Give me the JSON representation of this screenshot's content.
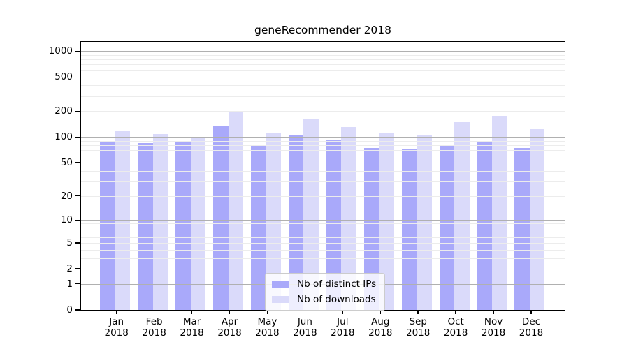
{
  "title": "geneRecommender 2018",
  "chart_data": {
    "type": "bar",
    "title": "geneRecommender 2018",
    "categories": [
      "Jan",
      "Feb",
      "Mar",
      "Apr",
      "May",
      "Jun",
      "Jul",
      "Aug",
      "Sep",
      "Oct",
      "Nov",
      "Dec"
    ],
    "year": "2018",
    "series": [
      {
        "name": "Nb of distinct IPs",
        "color": "#a9a9fa",
        "values": [
          87,
          85,
          89,
          135,
          79,
          105,
          94,
          75,
          73,
          81,
          87,
          75
        ]
      },
      {
        "name": "Nb of downloads",
        "color": "#dadafa",
        "values": [
          120,
          108,
          101,
          200,
          110,
          165,
          131,
          110,
          106,
          150,
          178,
          124
        ]
      }
    ],
    "yscale": "log1p",
    "yticks": [
      0,
      1,
      2,
      5,
      10,
      20,
      50,
      100,
      200,
      500,
      1000
    ],
    "minor_yticks": [
      3,
      4,
      6,
      7,
      8,
      9,
      30,
      40,
      60,
      70,
      80,
      90,
      300,
      400,
      600,
      700,
      800,
      900
    ],
    "decade_ticks": [
      1,
      10,
      100,
      1000
    ],
    "ylim": [
      0,
      1320
    ],
    "grid": true,
    "legend_position": "lower center",
    "colors": {
      "ips_bar": "#a9a9fa",
      "downloads_bar": "#dadafa",
      "grid_minor": "#ececec",
      "grid_decade": "#b0b0b0",
      "axis": "#000000",
      "legend_border": "#cccccc"
    }
  }
}
